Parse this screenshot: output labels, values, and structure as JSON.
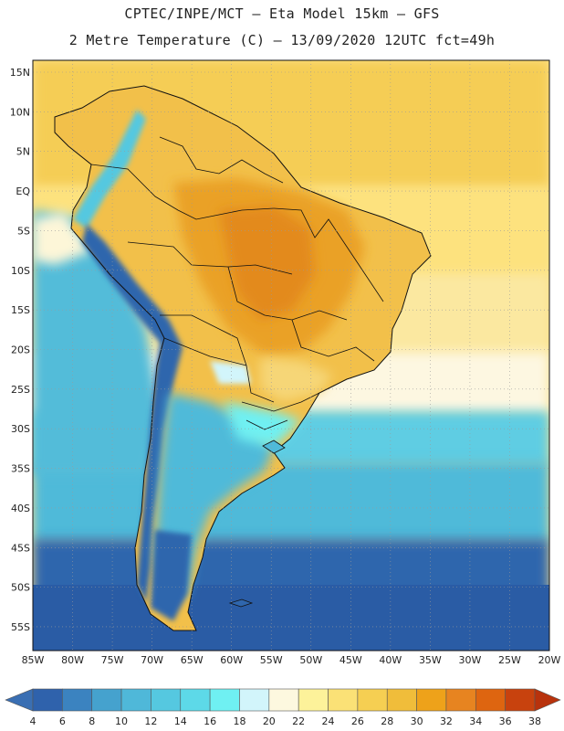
{
  "header": {
    "line1": "CPTEC/INPE/MCT –  Eta Model 15km – GFS",
    "line2": "2 Metre Temperature (C) – 13/09/2020 12UTC fct=49h"
  },
  "map": {
    "lon_range": [
      -85,
      -20
    ],
    "lat_range": [
      16.5,
      -58
    ],
    "lat_ticks": [
      "15N",
      "10N",
      "5N",
      "EQ",
      "5S",
      "10S",
      "15S",
      "20S",
      "25S",
      "30S",
      "35S",
      "40S",
      "45S",
      "50S",
      "55S"
    ],
    "lat_values": [
      15,
      10,
      5,
      0,
      -5,
      -10,
      -15,
      -20,
      -25,
      -30,
      -35,
      -40,
      -45,
      -50,
      -55
    ],
    "lon_ticks": [
      "85W",
      "80W",
      "75W",
      "70W",
      "65W",
      "60W",
      "55W",
      "50W",
      "45W",
      "40W",
      "35W",
      "30W",
      "25W",
      "20W"
    ],
    "lon_values": [
      -85,
      -80,
      -75,
      -70,
      -65,
      -60,
      -55,
      -50,
      -45,
      -40,
      -35,
      -30,
      -25,
      -20
    ]
  },
  "colorbar": {
    "labels": [
      "4",
      "6",
      "8",
      "10",
      "12",
      "14",
      "16",
      "18",
      "20",
      "22",
      "24",
      "26",
      "28",
      "30",
      "32",
      "34",
      "36",
      "38"
    ],
    "colors": [
      "#3a6fb3",
      "#2f62ac",
      "#3b83c0",
      "#45a2ce",
      "#4fb8d9",
      "#55c8e0",
      "#5dd9e8",
      "#6ff0f2",
      "#d2f5fb",
      "#fdf8df",
      "#fdf29a",
      "#fbe176",
      "#f6cf52",
      "#f0bd3a",
      "#eea21a",
      "#e78420",
      "#de6510",
      "#c8420e",
      "#b8320c"
    ]
  }
}
